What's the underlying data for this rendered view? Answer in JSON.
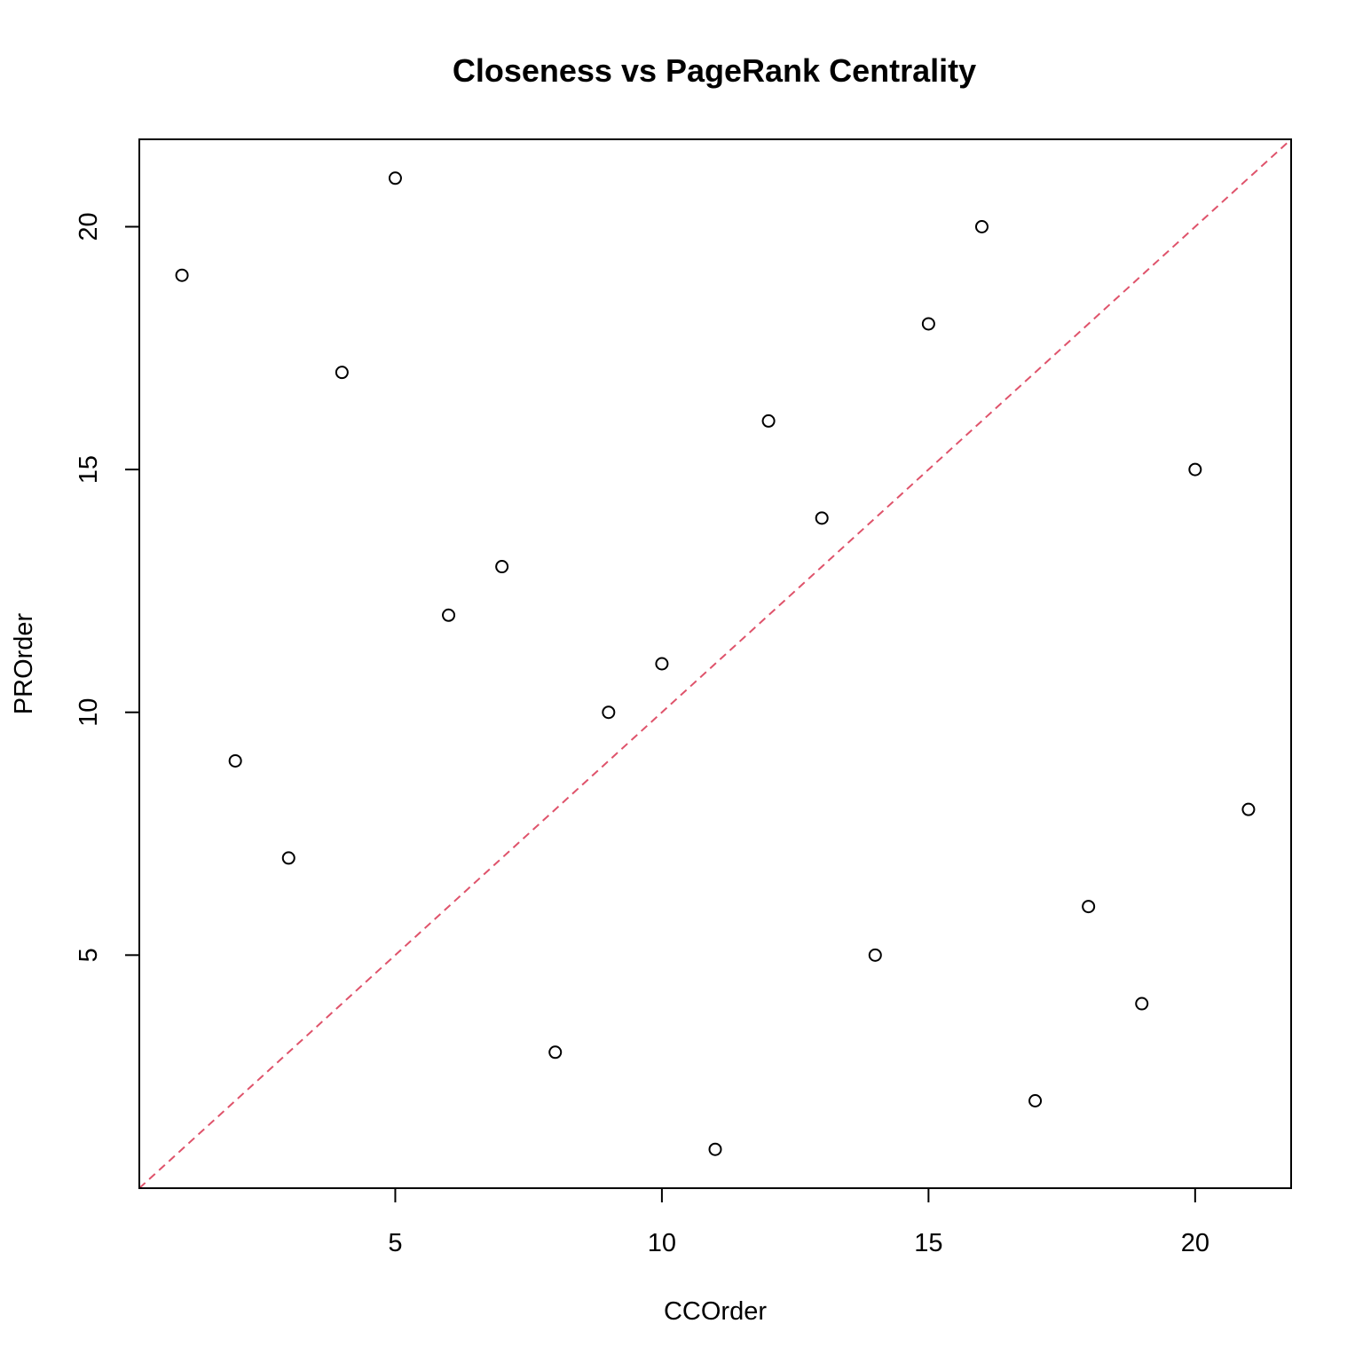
{
  "chart_data": {
    "type": "scatter",
    "title": "Closeness vs PageRank Centrality",
    "xlabel": "CCOrder",
    "ylabel": "PROrder",
    "xlim": [
      0.2,
      21.8
    ],
    "ylim": [
      0.2,
      21.8
    ],
    "xticks": [
      5,
      10,
      15,
      20
    ],
    "yticks": [
      5,
      10,
      15,
      20
    ],
    "grid": false,
    "legend": "none",
    "point_color": "#000000",
    "reference_line": {
      "slope": 1,
      "intercept": 0,
      "style": "dashed",
      "color": "#DF536B"
    },
    "points": [
      {
        "x": 1,
        "y": 19
      },
      {
        "x": 2,
        "y": 9
      },
      {
        "x": 3,
        "y": 7
      },
      {
        "x": 4,
        "y": 17
      },
      {
        "x": 5,
        "y": 21
      },
      {
        "x": 6,
        "y": 12
      },
      {
        "x": 7,
        "y": 13
      },
      {
        "x": 8,
        "y": 3
      },
      {
        "x": 9,
        "y": 10
      },
      {
        "x": 10,
        "y": 11
      },
      {
        "x": 11,
        "y": 1
      },
      {
        "x": 12,
        "y": 16
      },
      {
        "x": 13,
        "y": 14
      },
      {
        "x": 14,
        "y": 5
      },
      {
        "x": 15,
        "y": 18
      },
      {
        "x": 16,
        "y": 20
      },
      {
        "x": 17,
        "y": 2
      },
      {
        "x": 18,
        "y": 6
      },
      {
        "x": 19,
        "y": 4
      },
      {
        "x": 20,
        "y": 15
      },
      {
        "x": 21,
        "y": 8
      }
    ]
  }
}
